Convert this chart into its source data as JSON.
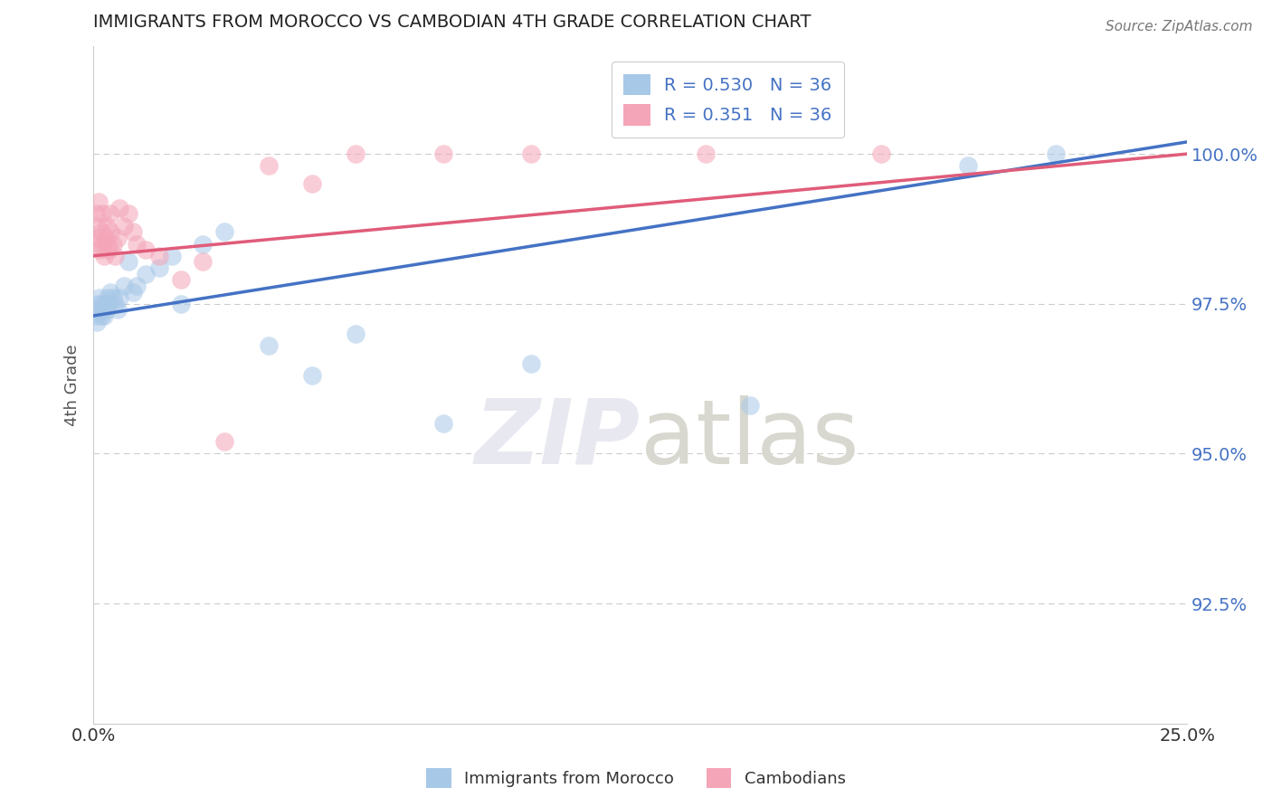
{
  "title": "IMMIGRANTS FROM MOROCCO VS CAMBODIAN 4TH GRADE CORRELATION CHART",
  "source": "Source: ZipAtlas.com",
  "ylabel": "4th Grade",
  "xlim": [
    0.0,
    25.0
  ],
  "ylim": [
    90.5,
    101.8
  ],
  "xtick_labels": [
    "0.0%",
    "25.0%"
  ],
  "xtick_vals": [
    0.0,
    25.0
  ],
  "ytick_labels": [
    "92.5%",
    "95.0%",
    "97.5%",
    "100.0%"
  ],
  "ytick_vals": [
    92.5,
    95.0,
    97.5,
    100.0
  ],
  "blue_R": 0.53,
  "pink_R": 0.351,
  "N": 36,
  "blue_color": "#a8c8e8",
  "pink_color": "#f4a5b8",
  "blue_line_color": "#4472c4",
  "pink_line_color": "#e05c7a",
  "legend_label_blue": "Immigrants from Morocco",
  "legend_label_pink": "Cambodians",
  "blue_x": [
    0.05,
    0.08,
    0.1,
    0.12,
    0.15,
    0.18,
    0.2,
    0.22,
    0.25,
    0.28,
    0.3,
    0.32,
    0.35,
    0.4,
    0.45,
    0.5,
    0.55,
    0.6,
    0.7,
    0.8,
    0.9,
    1.0,
    1.2,
    1.5,
    1.8,
    2.0,
    2.5,
    3.0,
    4.0,
    5.0,
    6.0,
    8.0,
    10.0,
    15.0,
    20.0,
    22.0
  ],
  "blue_y": [
    97.3,
    97.2,
    97.5,
    97.4,
    97.6,
    97.3,
    97.5,
    97.4,
    97.3,
    97.5,
    97.4,
    97.6,
    97.5,
    97.7,
    97.6,
    97.5,
    97.4,
    97.6,
    97.8,
    98.2,
    97.7,
    97.8,
    98.0,
    98.1,
    98.3,
    97.5,
    98.5,
    98.7,
    96.8,
    96.3,
    97.0,
    95.5,
    96.5,
    95.8,
    99.8,
    100.0
  ],
  "pink_x": [
    0.03,
    0.05,
    0.07,
    0.1,
    0.12,
    0.15,
    0.18,
    0.2,
    0.22,
    0.25,
    0.28,
    0.3,
    0.33,
    0.35,
    0.38,
    0.4,
    0.45,
    0.5,
    0.55,
    0.6,
    0.7,
    0.8,
    0.9,
    1.0,
    1.2,
    1.5,
    2.0,
    2.5,
    3.0,
    4.0,
    5.0,
    6.0,
    8.0,
    10.0,
    14.0,
    18.0
  ],
  "pink_y": [
    98.5,
    99.0,
    98.8,
    98.6,
    99.2,
    98.4,
    98.7,
    99.0,
    98.5,
    98.3,
    98.6,
    98.8,
    98.5,
    98.4,
    99.0,
    98.7,
    98.5,
    98.3,
    98.6,
    99.1,
    98.8,
    99.0,
    98.7,
    98.5,
    98.4,
    98.3,
    97.9,
    98.2,
    95.2,
    99.8,
    99.5,
    100.0,
    100.0,
    100.0,
    100.0,
    100.0
  ],
  "background_color": "#ffffff",
  "grid_color": "#cccccc",
  "watermark_text": "ZIPatlas",
  "watermark_color": "#e8e8f0"
}
